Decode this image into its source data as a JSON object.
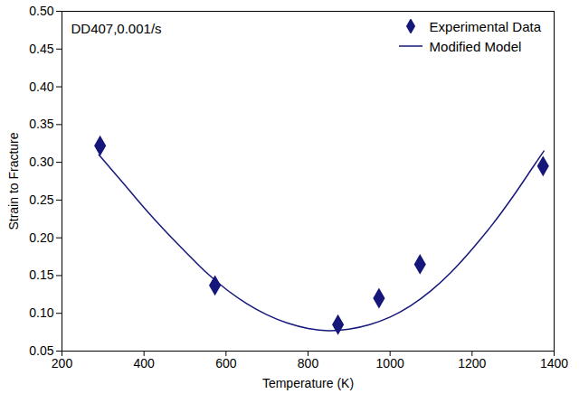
{
  "chart_data": {
    "type": "scatter",
    "annotation": "DD407,0.001/s",
    "x_label": "Temperature (K)",
    "y_label": "Strain to Fracture",
    "xlim": [
      200,
      1400
    ],
    "xticks": [
      200,
      400,
      600,
      800,
      1000,
      1200,
      1400
    ],
    "ylim": [
      0.05,
      0.5
    ],
    "yticks": [
      0.05,
      {
        "value": 0.1,
        "label": "0.10"
      },
      0.15,
      {
        "value": 0.2,
        "label": "0.20"
      },
      0.25,
      {
        "value": 0.3,
        "label": "0.30"
      },
      0.35,
      {
        "value": 0.4,
        "label": "0.40"
      },
      0.45,
      {
        "value": 0.5,
        "label": "0.50"
      }
    ],
    "grid": false,
    "legend": "top-right",
    "series": [
      {
        "name": "Experimental Data",
        "type": "scatter",
        "marker": "diamond",
        "color": "#15177a",
        "x": [
          293,
          573,
          873,
          973,
          1073,
          1373
        ],
        "values": [
          0.322,
          0.137,
          0.085,
          0.12,
          0.165,
          0.295
        ]
      },
      {
        "name": "Modified Model",
        "type": "line",
        "line_style": "solid",
        "color": "#15177a",
        "x": [
          290,
          350,
          400,
          450,
          500,
          550,
          600,
          650,
          700,
          750,
          800,
          850,
          900,
          950,
          1000,
          1050,
          1100,
          1150,
          1200,
          1250,
          1300,
          1350,
          1375
        ],
        "values": [
          0.31,
          0.272,
          0.24,
          0.21,
          0.182,
          0.155,
          0.132,
          0.113,
          0.098,
          0.087,
          0.08,
          0.077,
          0.079,
          0.085,
          0.095,
          0.11,
          0.13,
          0.155,
          0.185,
          0.218,
          0.255,
          0.295,
          0.315
        ]
      }
    ]
  }
}
